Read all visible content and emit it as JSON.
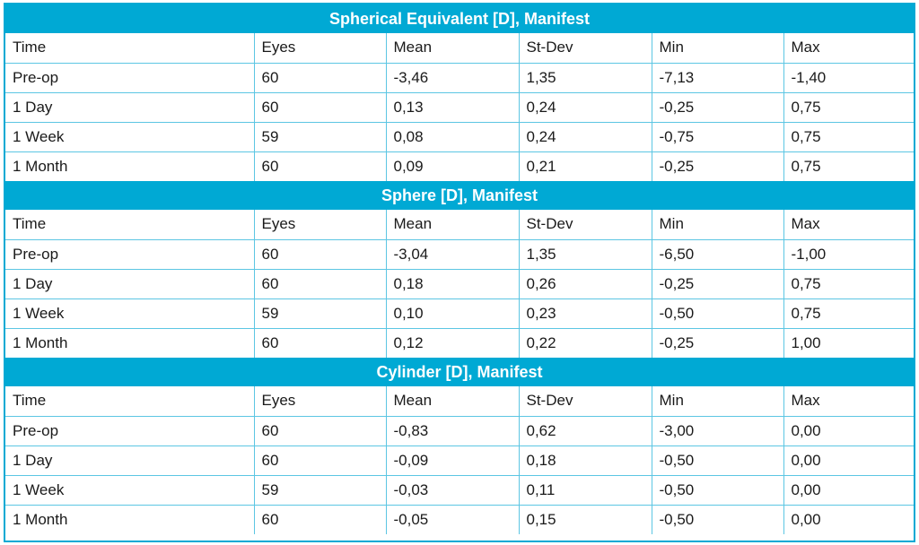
{
  "columns": [
    "Time",
    "Eyes",
    "Mean",
    "St-Dev",
    "Min",
    "Max"
  ],
  "sections": [
    {
      "title": "Spherical Equivalent [D], Manifest",
      "rows": [
        [
          "Pre-op",
          "60",
          "-3,46",
          "1,35",
          "-7,13",
          "-1,40"
        ],
        [
          "1 Day",
          "60",
          "0,13",
          "0,24",
          "-0,25",
          "0,75"
        ],
        [
          "1 Week",
          "59",
          "0,08",
          "0,24",
          "-0,75",
          "0,75"
        ],
        [
          "1 Month",
          "60",
          "0,09",
          "0,21",
          "-0,25",
          "0,75"
        ]
      ]
    },
    {
      "title": "Sphere [D], Manifest",
      "rows": [
        [
          "Pre-op",
          "60",
          "-3,04",
          "1,35",
          "-6,50",
          "-1,00"
        ],
        [
          "1 Day",
          "60",
          "0,18",
          "0,26",
          "-0,25",
          "0,75"
        ],
        [
          "1 Week",
          "59",
          "0,10",
          "0,23",
          "-0,50",
          "0,75"
        ],
        [
          "1 Month",
          "60",
          "0,12",
          "0,22",
          "-0,25",
          "1,00"
        ]
      ]
    },
    {
      "title": "Cylinder [D], Manifest",
      "rows": [
        [
          "Pre-op",
          "60",
          "-0,83",
          "0,62",
          "-3,00",
          "0,00"
        ],
        [
          "1 Day",
          "60",
          "-0,09",
          "0,18",
          "-0,50",
          "0,00"
        ],
        [
          "1 Week",
          "59",
          "-0,03",
          "0,11",
          "-0,50",
          "0,00"
        ],
        [
          "1 Month",
          "60",
          "-0,05",
          "0,15",
          "-0,50",
          "0,00"
        ]
      ]
    }
  ],
  "colors": {
    "accent": "#00a9d4",
    "grid": "#5cc6e3",
    "header_text": "#ffffff",
    "body_text": "#1a1a1a"
  }
}
